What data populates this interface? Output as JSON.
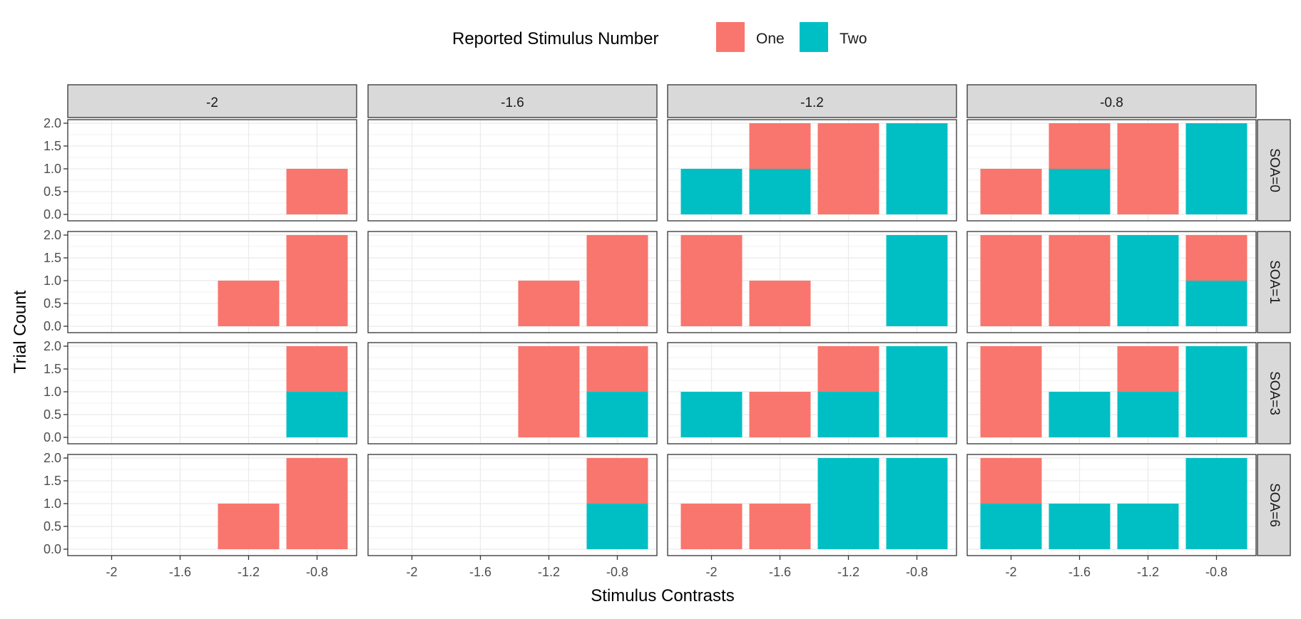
{
  "chart_data": {
    "type": "bar",
    "stacked": true,
    "facet_columns": [
      "-2",
      "-1.6",
      "-1.2",
      "-0.8"
    ],
    "facet_rows": [
      "SOA=0",
      "SOA=1",
      "SOA=3",
      "SOA=6"
    ],
    "categories": [
      "-2",
      "-1.6",
      "-1.2",
      "-0.8"
    ],
    "xlabel": "Stimulus Contrasts",
    "ylabel": "Trial Count",
    "ylim": [
      0,
      2
    ],
    "yticks": [
      "0.0",
      "0.5",
      "1.0",
      "1.5",
      "2.0"
    ],
    "legend": {
      "title": "Reported Stimulus Number",
      "position": "top",
      "entries": [
        {
          "label": "One",
          "color": "#F8766D"
        },
        {
          "label": "Two",
          "color": "#00BFC4"
        }
      ]
    },
    "colors": {
      "One": "#F8766D",
      "Two": "#00BFC4"
    },
    "panels": [
      [
        {
          "one": [
            0,
            0,
            0,
            1
          ],
          "two": [
            0,
            0,
            0,
            0
          ]
        },
        {
          "one": [
            0,
            0,
            0,
            0
          ],
          "two": [
            0,
            0,
            0,
            0
          ]
        },
        {
          "one": [
            0,
            1,
            2,
            0
          ],
          "two": [
            1,
            1,
            0,
            2
          ]
        },
        {
          "one": [
            1,
            1,
            2,
            0
          ],
          "two": [
            0,
            1,
            0,
            2
          ]
        }
      ],
      [
        {
          "one": [
            0,
            0,
            1,
            2
          ],
          "two": [
            0,
            0,
            0,
            0
          ]
        },
        {
          "one": [
            0,
            0,
            1,
            2
          ],
          "two": [
            0,
            0,
            0,
            0
          ]
        },
        {
          "one": [
            2,
            1,
            0,
            0
          ],
          "two": [
            0,
            0,
            0,
            2
          ]
        },
        {
          "one": [
            2,
            2,
            0,
            1
          ],
          "two": [
            0,
            0,
            2,
            1
          ]
        }
      ],
      [
        {
          "one": [
            0,
            0,
            0,
            1
          ],
          "two": [
            0,
            0,
            0,
            1
          ]
        },
        {
          "one": [
            0,
            0,
            2,
            1
          ],
          "two": [
            0,
            0,
            0,
            1
          ]
        },
        {
          "one": [
            0,
            1,
            1,
            0
          ],
          "two": [
            1,
            0,
            1,
            2
          ]
        },
        {
          "one": [
            2,
            0,
            1,
            0
          ],
          "two": [
            0,
            1,
            1,
            2
          ]
        }
      ],
      [
        {
          "one": [
            0,
            0,
            1,
            2
          ],
          "two": [
            0,
            0,
            0,
            0
          ]
        },
        {
          "one": [
            0,
            0,
            0,
            1
          ],
          "two": [
            0,
            0,
            0,
            1
          ]
        },
        {
          "one": [
            1,
            1,
            0,
            0
          ],
          "two": [
            0,
            0,
            2,
            2
          ]
        },
        {
          "one": [
            1,
            0,
            0,
            0
          ],
          "two": [
            1,
            1,
            1,
            2
          ]
        }
      ]
    ]
  }
}
